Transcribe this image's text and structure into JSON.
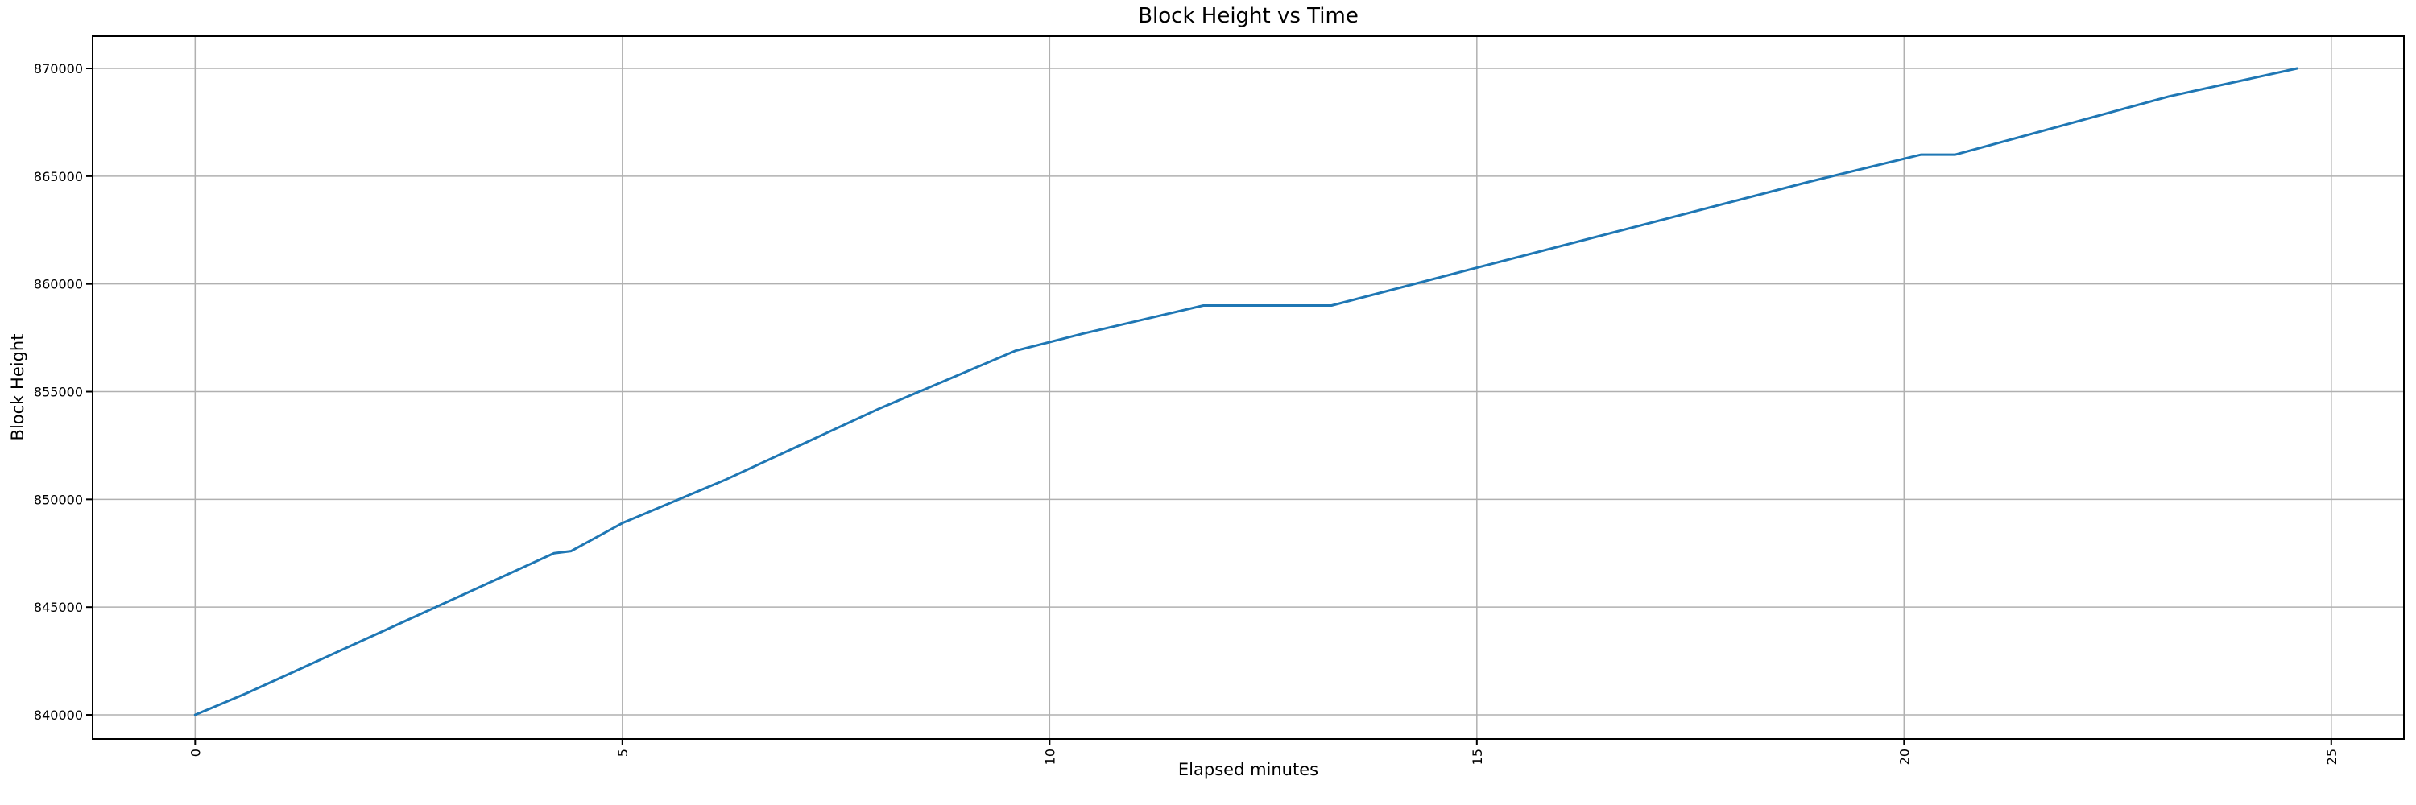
{
  "title": "Block Height vs Time",
  "chart_data": {
    "type": "line",
    "title": "Block Height vs Time",
    "xlabel": "Elapsed minutes",
    "ylabel": "Block Height",
    "xlim": [
      -1.2,
      25.85
    ],
    "ylim": [
      838880,
      871495
    ],
    "x_ticks": [
      0,
      5,
      10,
      15,
      20,
      25
    ],
    "y_ticks": [
      840000,
      845000,
      850000,
      855000,
      860000,
      865000,
      870000
    ],
    "x_tick_rotation": 90,
    "grid": true,
    "legend_position": "none",
    "colors": {
      "line": "#1f77b4",
      "grid": "#b0b0b0",
      "spine": "#000000",
      "background": "#ffffff"
    },
    "series": [
      {
        "name": "Block Height",
        "points": [
          [
            0.0,
            840000
          ],
          [
            0.6,
            841000
          ],
          [
            4.2,
            847500
          ],
          [
            4.4,
            847600
          ],
          [
            5.0,
            848900
          ],
          [
            6.2,
            850900
          ],
          [
            8.0,
            854200
          ],
          [
            9.6,
            856900
          ],
          [
            10.4,
            857700
          ],
          [
            11.8,
            859000
          ],
          [
            13.3,
            859000
          ],
          [
            15.0,
            860750
          ],
          [
            18.9,
            864750
          ],
          [
            20.2,
            866000
          ],
          [
            20.6,
            866000
          ],
          [
            23.1,
            868700
          ],
          [
            24.6,
            870000
          ]
        ]
      }
    ]
  }
}
